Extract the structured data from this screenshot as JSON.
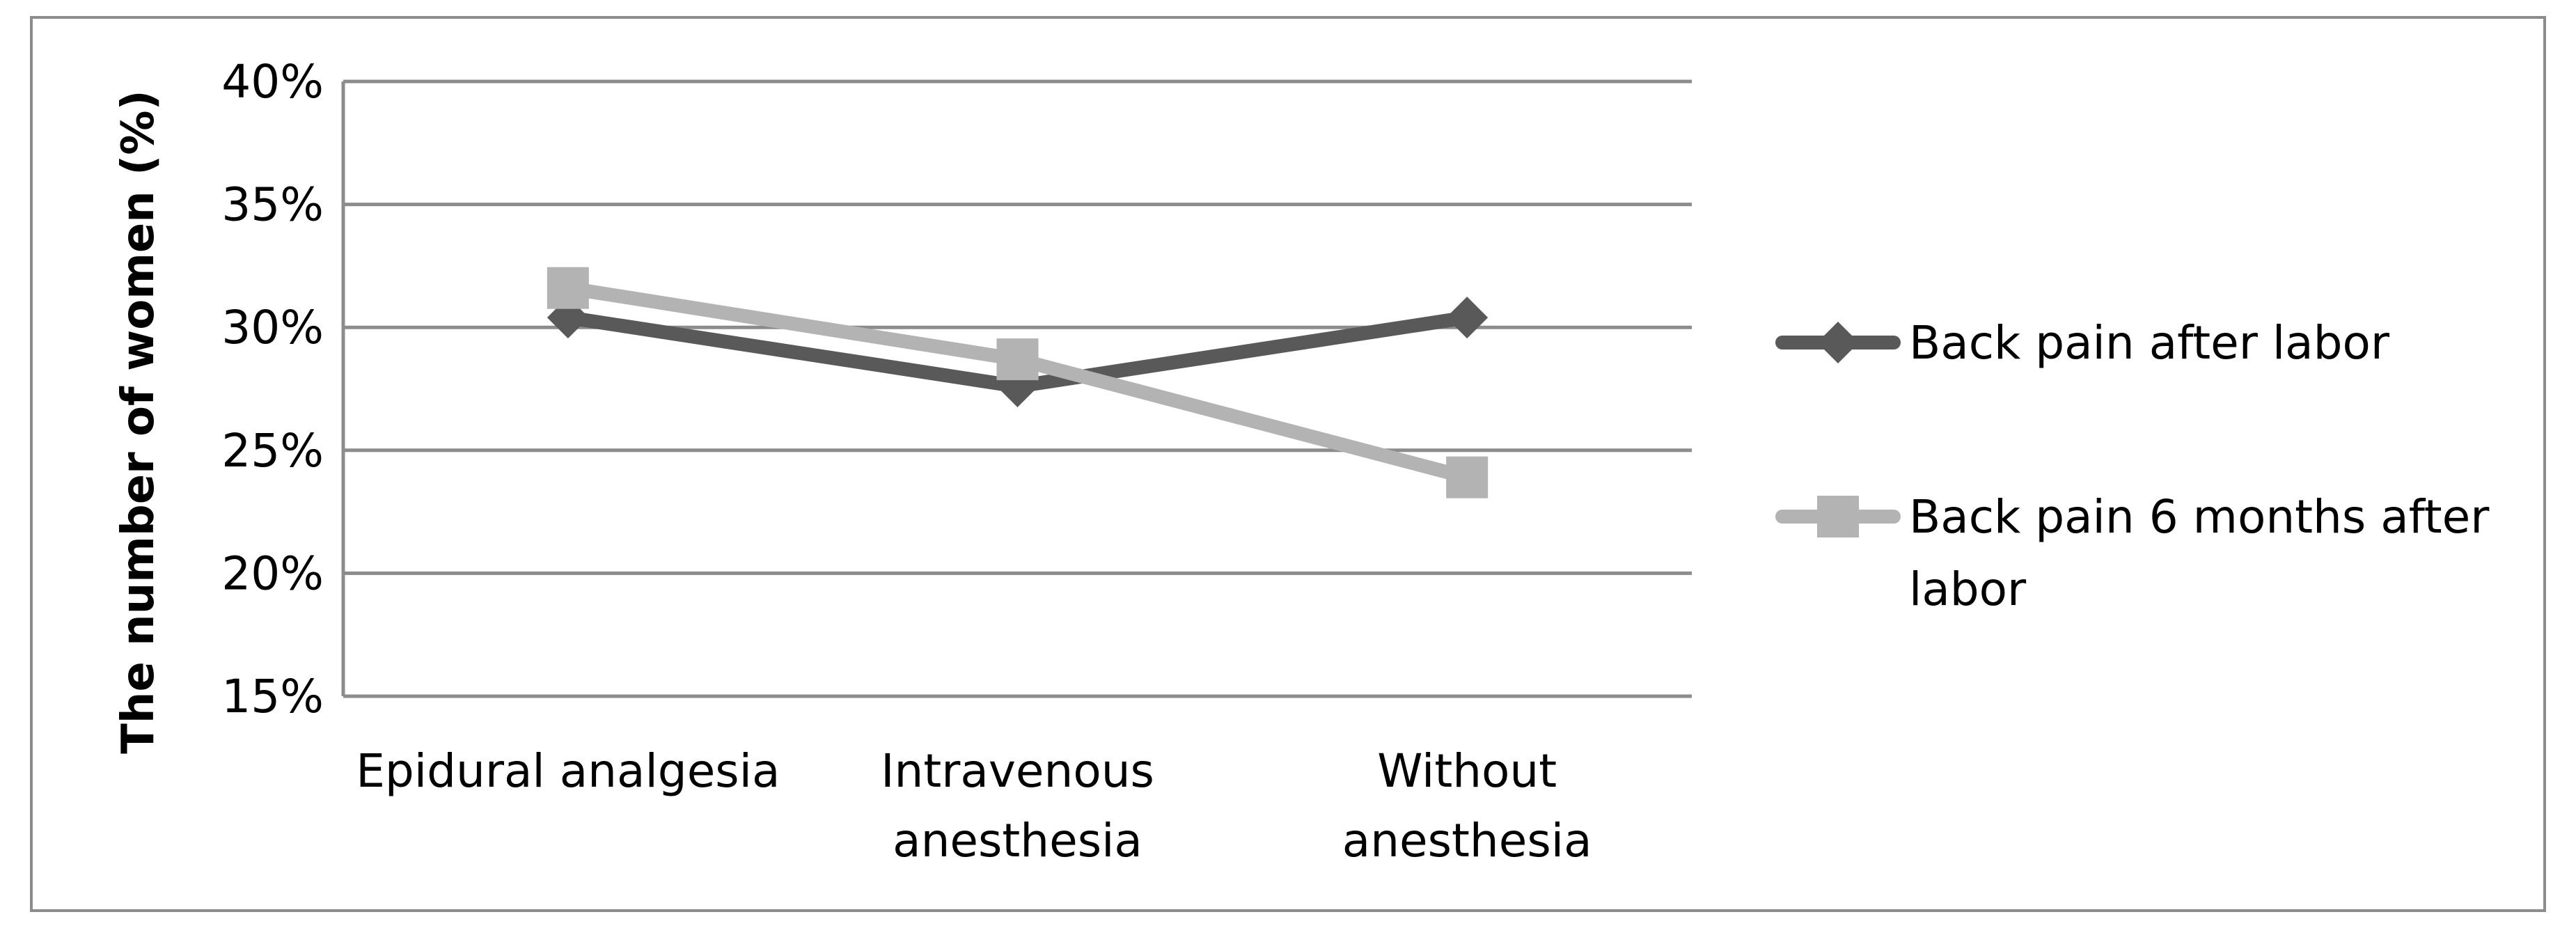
{
  "chart_data": {
    "type": "line",
    "title": "",
    "xlabel": "",
    "ylabel": "The number of women (%)",
    "ylim": [
      15,
      40
    ],
    "yticks": [
      "15%",
      "20%",
      "25%",
      "30%",
      "35%",
      "40%"
    ],
    "ytick_values": [
      15,
      20,
      25,
      30,
      35,
      40
    ],
    "categories": [
      [
        "Epidural analgesia"
      ],
      [
        "Intravenous",
        "anesthesia"
      ],
      [
        "Without",
        "anesthesia"
      ]
    ],
    "grid": true,
    "legend_position": "right",
    "series": [
      {
        "name": "Back pain after labor",
        "name_lines": [
          "Back pain after labor"
        ],
        "values": [
          30.4,
          27.6,
          30.4
        ],
        "color": "#595959",
        "marker": "diamond"
      },
      {
        "name": "Back pain 6 months after labor",
        "name_lines": [
          "Back pain 6 months after",
          "labor"
        ],
        "values": [
          31.6,
          28.7,
          23.9
        ],
        "color": "#b3b3b3",
        "marker": "square"
      }
    ]
  }
}
